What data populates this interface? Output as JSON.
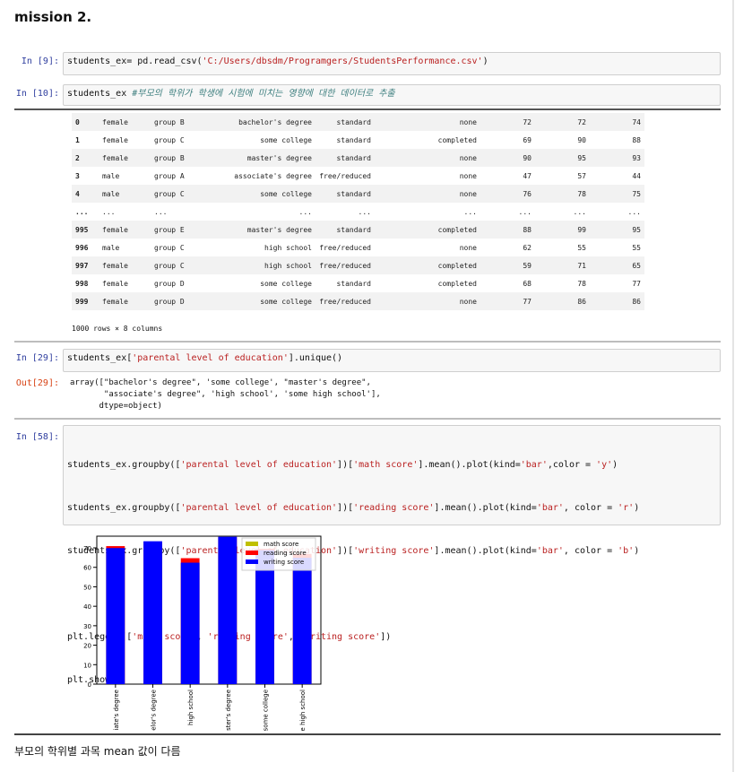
{
  "page": {
    "heading": "mission 2.",
    "caption": "부모의 학위별 과목 mean 값이 다름"
  },
  "cells": {
    "c9": {
      "prompt": "In [9]:",
      "code_a": "students_ex= pd.read_csv(",
      "code_str": "'C:/Users/dbsdm/Programgers/StudentsPerformance.csv'",
      "code_b": ")"
    },
    "c10": {
      "prompt": "In [10]:",
      "code_a": "students_ex ",
      "code_comment": "#부모의 학위가 학생에 시험에 미치는 영향에 대한 데이터로 추출"
    },
    "c29": {
      "prompt": "In [29]:",
      "code_a": "students_ex[",
      "code_str": "'parental level of education'",
      "code_b": "].unique()",
      "out_prompt": "Out[29]:",
      "out_line1": "array([\"bachelor's degree\", 'some college', \"master's degree\",",
      "out_line2": "       \"associate's degree\", 'high school', 'some high school'],",
      "out_line3": "      dtype=object)"
    },
    "c58": {
      "prompt": "In [58]:",
      "line1": "students_ex.groupby(['parental level of education'])['math score'].mean().plot(kind='bar',color = 'y')",
      "line2": "students_ex.groupby(['parental level of education'])['reading score'].mean().plot(kind='bar', color = 'r')",
      "line3": "students_ex.groupby(['parental level of education'])['writing score'].mean().plot(kind='bar', color = 'b')",
      "line4": "plt.legend(['math score', 'reading score', 'writing score'])",
      "line5": "plt.show()"
    }
  },
  "dataframe": {
    "rows": [
      [
        "0",
        "female",
        "group B",
        "bachelor's degree",
        "standard",
        "none",
        "72",
        "72",
        "74"
      ],
      [
        "1",
        "female",
        "group C",
        "some college",
        "standard",
        "completed",
        "69",
        "90",
        "88"
      ],
      [
        "2",
        "female",
        "group B",
        "master's degree",
        "standard",
        "none",
        "90",
        "95",
        "93"
      ],
      [
        "3",
        "male",
        "group A",
        "associate's degree",
        "free/reduced",
        "none",
        "47",
        "57",
        "44"
      ],
      [
        "4",
        "male",
        "group C",
        "some college",
        "standard",
        "none",
        "76",
        "78",
        "75"
      ],
      [
        "...",
        "...",
        "...",
        "...",
        "...",
        "...",
        "...",
        "...",
        "..."
      ],
      [
        "995",
        "female",
        "group E",
        "master's degree",
        "standard",
        "completed",
        "88",
        "99",
        "95"
      ],
      [
        "996",
        "male",
        "group C",
        "high school",
        "free/reduced",
        "none",
        "62",
        "55",
        "55"
      ],
      [
        "997",
        "female",
        "group C",
        "high school",
        "free/reduced",
        "completed",
        "59",
        "71",
        "65"
      ],
      [
        "998",
        "female",
        "group D",
        "some college",
        "standard",
        "completed",
        "68",
        "78",
        "77"
      ],
      [
        "999",
        "female",
        "group D",
        "some college",
        "free/reduced",
        "none",
        "77",
        "86",
        "86"
      ]
    ],
    "footer": "1000 rows × 8 columns"
  },
  "chart_data": {
    "type": "bar",
    "categories": [
      "associate's degree",
      "bachelor's degree",
      "high school",
      "master's degree",
      "some college",
      "some high school"
    ],
    "category_labels_visible": [
      "iate's degree",
      "elor's degree",
      "high school",
      "ster's degree",
      "some college",
      "e high school"
    ],
    "series": [
      {
        "name": "math score",
        "color": "#bfbf00",
        "values": [
          67.9,
          69.4,
          62.1,
          69.7,
          67.1,
          63.5
        ]
      },
      {
        "name": "reading score",
        "color": "#ff0000",
        "values": [
          70.9,
          73.0,
          64.7,
          75.4,
          69.5,
          66.9
        ]
      },
      {
        "name": "writing score",
        "color": "#0000ff",
        "values": [
          69.9,
          73.4,
          62.4,
          75.7,
          68.8,
          64.9
        ]
      }
    ],
    "yticks": [
      0,
      10,
      20,
      30,
      40,
      50,
      60,
      70
    ],
    "ylim": [
      0,
      76
    ],
    "legend_position": "top-right",
    "grid": false
  }
}
